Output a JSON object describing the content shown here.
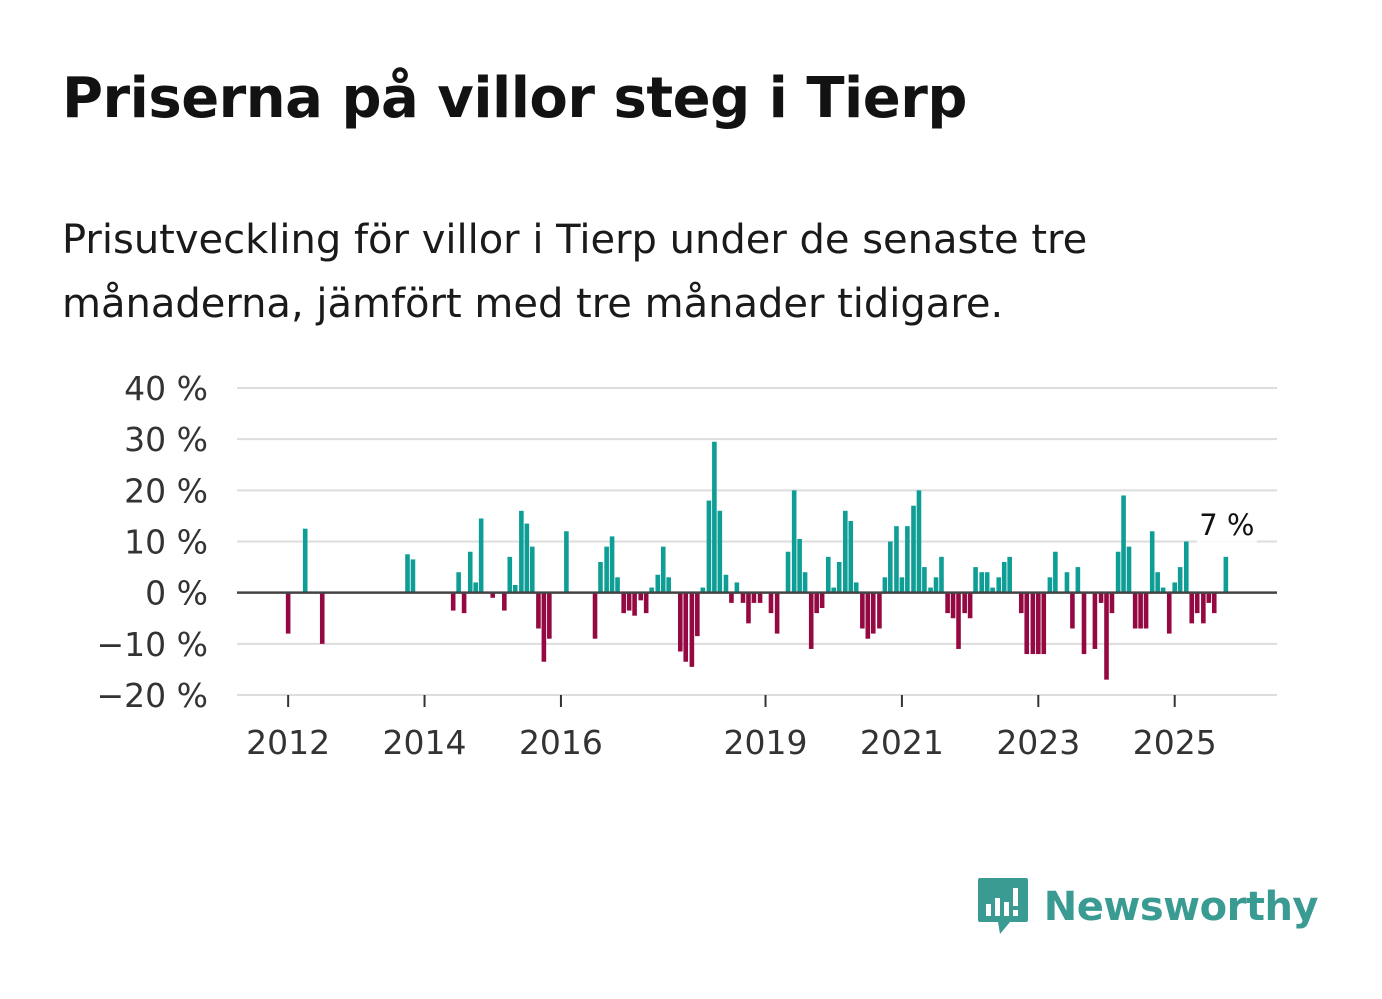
{
  "title": "Priserna på villor steg i Tierp",
  "subtitle": "Prisutveckling för villor i Tierp under de senaste tre månaderna, jämfört med tre månader tidigare.",
  "brand": "Newsworthy",
  "colors": {
    "positive": "#0e9e95",
    "negative": "#950942",
    "grid": "#dddddd",
    "zero": "#444444",
    "brand": "#3a9b93"
  },
  "chart_data": {
    "type": "bar",
    "title": "Priserna på villor steg i Tierp",
    "xlabel": "",
    "ylabel": "",
    "ylim": [
      -20,
      40
    ],
    "y_ticks": [
      40,
      30,
      20,
      10,
      0,
      -10,
      -20
    ],
    "y_tick_labels": [
      "40 %",
      "30 %",
      "20 %",
      "10 %",
      "0 %",
      "−10 %",
      "−20 %"
    ],
    "x_tick_labels": [
      "2012",
      "2014",
      "2016",
      "2019",
      "2021",
      "2023",
      "2025"
    ],
    "x_tick_years": [
      2012,
      2014,
      2016,
      2019,
      2021,
      2023,
      2025
    ],
    "x_range": [
      2011.25,
      2026.5
    ],
    "last_value_label": "7 %",
    "series": [
      {
        "name": "Prisutveckling",
        "points": [
          {
            "x": 2012.0,
            "v": -8
          },
          {
            "x": 2012.25,
            "v": 12.5
          },
          {
            "x": 2012.5,
            "v": -10
          },
          {
            "x": 2013.75,
            "v": 7.5
          },
          {
            "x": 2013.83,
            "v": 6.5
          },
          {
            "x": 2014.42,
            "v": -3.5
          },
          {
            "x": 2014.5,
            "v": 4
          },
          {
            "x": 2014.58,
            "v": -4
          },
          {
            "x": 2014.67,
            "v": 8
          },
          {
            "x": 2014.75,
            "v": 2
          },
          {
            "x": 2014.83,
            "v": 14.5
          },
          {
            "x": 2015.0,
            "v": -1
          },
          {
            "x": 2015.17,
            "v": -3.5
          },
          {
            "x": 2015.25,
            "v": 7
          },
          {
            "x": 2015.33,
            "v": 1.5
          },
          {
            "x": 2015.42,
            "v": 16
          },
          {
            "x": 2015.5,
            "v": 13.5
          },
          {
            "x": 2015.58,
            "v": 9
          },
          {
            "x": 2015.67,
            "v": -7
          },
          {
            "x": 2015.75,
            "v": -13.5
          },
          {
            "x": 2015.83,
            "v": -9
          },
          {
            "x": 2016.08,
            "v": 12
          },
          {
            "x": 2016.5,
            "v": -9
          },
          {
            "x": 2016.58,
            "v": 6
          },
          {
            "x": 2016.67,
            "v": 9
          },
          {
            "x": 2016.75,
            "v": 11
          },
          {
            "x": 2016.83,
            "v": 3
          },
          {
            "x": 2016.92,
            "v": -4
          },
          {
            "x": 2017.0,
            "v": -3.5
          },
          {
            "x": 2017.08,
            "v": -4.5
          },
          {
            "x": 2017.17,
            "v": -1.5
          },
          {
            "x": 2017.25,
            "v": -4
          },
          {
            "x": 2017.33,
            "v": 1
          },
          {
            "x": 2017.42,
            "v": 3.5
          },
          {
            "x": 2017.5,
            "v": 9
          },
          {
            "x": 2017.58,
            "v": 3
          },
          {
            "x": 2017.75,
            "v": -11.5
          },
          {
            "x": 2017.83,
            "v": -13.5
          },
          {
            "x": 2017.92,
            "v": -14.5
          },
          {
            "x": 2018.0,
            "v": -8.5
          },
          {
            "x": 2018.08,
            "v": 1
          },
          {
            "x": 2018.17,
            "v": 18
          },
          {
            "x": 2018.25,
            "v": 29.5
          },
          {
            "x": 2018.33,
            "v": 16
          },
          {
            "x": 2018.42,
            "v": 3.5
          },
          {
            "x": 2018.5,
            "v": -2
          },
          {
            "x": 2018.58,
            "v": 2
          },
          {
            "x": 2018.67,
            "v": -2
          },
          {
            "x": 2018.75,
            "v": -6
          },
          {
            "x": 2018.83,
            "v": -2
          },
          {
            "x": 2018.92,
            "v": -2
          },
          {
            "x": 2019.08,
            "v": -4
          },
          {
            "x": 2019.17,
            "v": -8
          },
          {
            "x": 2019.33,
            "v": 8
          },
          {
            "x": 2019.42,
            "v": 20
          },
          {
            "x": 2019.5,
            "v": 10.5
          },
          {
            "x": 2019.58,
            "v": 4
          },
          {
            "x": 2019.67,
            "v": -11
          },
          {
            "x": 2019.75,
            "v": -4
          },
          {
            "x": 2019.83,
            "v": -3
          },
          {
            "x": 2019.92,
            "v": 7
          },
          {
            "x": 2020.0,
            "v": 1
          },
          {
            "x": 2020.08,
            "v": 6
          },
          {
            "x": 2020.17,
            "v": 16
          },
          {
            "x": 2020.25,
            "v": 14
          },
          {
            "x": 2020.33,
            "v": 2
          },
          {
            "x": 2020.42,
            "v": -7
          },
          {
            "x": 2020.5,
            "v": -9
          },
          {
            "x": 2020.58,
            "v": -8
          },
          {
            "x": 2020.67,
            "v": -7
          },
          {
            "x": 2020.75,
            "v": 3
          },
          {
            "x": 2020.83,
            "v": 10
          },
          {
            "x": 2020.92,
            "v": 13
          },
          {
            "x": 2021.0,
            "v": 3
          },
          {
            "x": 2021.08,
            "v": 13
          },
          {
            "x": 2021.17,
            "v": 17
          },
          {
            "x": 2021.25,
            "v": 20
          },
          {
            "x": 2021.33,
            "v": 5
          },
          {
            "x": 2021.42,
            "v": 1
          },
          {
            "x": 2021.5,
            "v": 3
          },
          {
            "x": 2021.58,
            "v": 7
          },
          {
            "x": 2021.67,
            "v": -4
          },
          {
            "x": 2021.75,
            "v": -5
          },
          {
            "x": 2021.83,
            "v": -11
          },
          {
            "x": 2021.92,
            "v": -4
          },
          {
            "x": 2022.0,
            "v": -5
          },
          {
            "x": 2022.08,
            "v": 5
          },
          {
            "x": 2022.17,
            "v": 4
          },
          {
            "x": 2022.25,
            "v": 4
          },
          {
            "x": 2022.33,
            "v": 1
          },
          {
            "x": 2022.42,
            "v": 3
          },
          {
            "x": 2022.5,
            "v": 6
          },
          {
            "x": 2022.58,
            "v": 7
          },
          {
            "x": 2022.75,
            "v": -4
          },
          {
            "x": 2022.83,
            "v": -12
          },
          {
            "x": 2022.92,
            "v": -12
          },
          {
            "x": 2023.0,
            "v": -12
          },
          {
            "x": 2023.08,
            "v": -12
          },
          {
            "x": 2023.17,
            "v": 3
          },
          {
            "x": 2023.25,
            "v": 8
          },
          {
            "x": 2023.42,
            "v": 4
          },
          {
            "x": 2023.5,
            "v": -7
          },
          {
            "x": 2023.58,
            "v": 5
          },
          {
            "x": 2023.67,
            "v": -12
          },
          {
            "x": 2023.83,
            "v": -11
          },
          {
            "x": 2023.92,
            "v": -2
          },
          {
            "x": 2024.0,
            "v": -17
          },
          {
            "x": 2024.08,
            "v": -4
          },
          {
            "x": 2024.17,
            "v": 8
          },
          {
            "x": 2024.25,
            "v": 19
          },
          {
            "x": 2024.33,
            "v": 9
          },
          {
            "x": 2024.42,
            "v": -7
          },
          {
            "x": 2024.5,
            "v": -7
          },
          {
            "x": 2024.58,
            "v": -7
          },
          {
            "x": 2024.67,
            "v": 12
          },
          {
            "x": 2024.75,
            "v": 4
          },
          {
            "x": 2024.83,
            "v": 1
          },
          {
            "x": 2024.92,
            "v": -8
          },
          {
            "x": 2025.0,
            "v": 2
          },
          {
            "x": 2025.08,
            "v": 5
          },
          {
            "x": 2025.17,
            "v": 10
          },
          {
            "x": 2025.25,
            "v": -6
          },
          {
            "x": 2025.33,
            "v": -4
          },
          {
            "x": 2025.42,
            "v": -6
          },
          {
            "x": 2025.5,
            "v": -2
          },
          {
            "x": 2025.58,
            "v": -4
          },
          {
            "x": 2025.75,
            "v": 7
          }
        ]
      }
    ]
  }
}
